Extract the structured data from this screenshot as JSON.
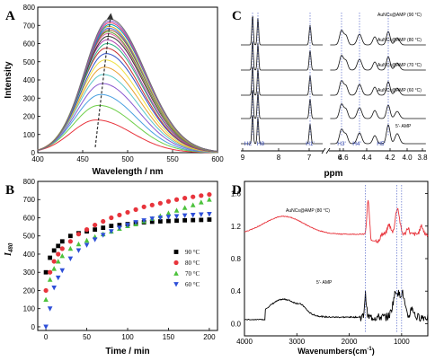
{
  "chart_data": [
    {
      "panel": "A",
      "type": "line",
      "xlabel": "Wavelength / nm",
      "ylabel": "Intensity",
      "xlim": [
        400,
        600
      ],
      "ylim": [
        0,
        800
      ],
      "xticks": [
        400,
        450,
        500,
        550,
        600
      ],
      "yticks": [
        0,
        100,
        200,
        300,
        400,
        500,
        600,
        700,
        800
      ],
      "sigma": 36,
      "series": [
        {
          "center": 465,
          "peak": 180,
          "color": "#e8343c"
        },
        {
          "center": 468,
          "peak": 260,
          "color": "#6fcf4a"
        },
        {
          "center": 470,
          "peak": 320,
          "color": "#4aa0e0"
        },
        {
          "center": 472,
          "peak": 380,
          "color": "#8a5ad0"
        },
        {
          "center": 473,
          "peak": 430,
          "color": "#5ac8c8"
        },
        {
          "center": 474,
          "peak": 470,
          "color": "#e8a030"
        },
        {
          "center": 475,
          "peak": 510,
          "color": "#f0e040"
        },
        {
          "center": 476,
          "peak": 545,
          "color": "#3050c8"
        },
        {
          "center": 476,
          "peak": 575,
          "color": "#c83030"
        },
        {
          "center": 477,
          "peak": 600,
          "color": "#2ab080"
        },
        {
          "center": 477,
          "peak": 620,
          "color": "#b040b0"
        },
        {
          "center": 478,
          "peak": 640,
          "color": "#303030"
        },
        {
          "center": 478,
          "peak": 655,
          "color": "#e060a0"
        },
        {
          "center": 478,
          "peak": 665,
          "color": "#60a030"
        },
        {
          "center": 479,
          "peak": 675,
          "color": "#a06030"
        },
        {
          "center": 479,
          "peak": 685,
          "color": "#4060e0"
        },
        {
          "center": 479,
          "peak": 695,
          "color": "#d0b020"
        },
        {
          "center": 480,
          "peak": 705,
          "color": "#00a0c0"
        },
        {
          "center": 480,
          "peak": 715,
          "color": "#e04070"
        },
        {
          "center": 480,
          "peak": 725,
          "color": "#9060d0"
        },
        {
          "center": 480,
          "peak": 735,
          "color": "#707070"
        }
      ],
      "arrow": {
        "from": [
          464,
          30
        ],
        "to": [
          481,
          750
        ]
      }
    },
    {
      "panel": "B",
      "type": "scatter",
      "xlabel": "Time / min",
      "ylabel": "I",
      "ylabel_sub": "480",
      "xlim": [
        -10,
        210
      ],
      "ylim": [
        -20,
        800
      ],
      "xticks": [
        0,
        50,
        100,
        150,
        200
      ],
      "yticks": [
        0,
        100,
        200,
        300,
        400,
        500,
        600,
        700,
        800
      ],
      "x": [
        0,
        5,
        10,
        15,
        20,
        30,
        40,
        50,
        60,
        70,
        80,
        90,
        100,
        110,
        120,
        130,
        140,
        150,
        160,
        170,
        180,
        190,
        200
      ],
      "series": [
        {
          "name": "90 °C",
          "color": "#000000",
          "marker": "square",
          "values": [
            300,
            380,
            420,
            445,
            470,
            500,
            515,
            525,
            535,
            545,
            555,
            560,
            565,
            570,
            575,
            578,
            580,
            582,
            584,
            586,
            587,
            588,
            590
          ]
        },
        {
          "name": "80 °C",
          "color": "#e8343c",
          "marker": "circle",
          "values": [
            200,
            300,
            360,
            400,
            430,
            470,
            510,
            535,
            560,
            580,
            600,
            615,
            630,
            645,
            660,
            670,
            680,
            690,
            700,
            708,
            715,
            722,
            728
          ]
        },
        {
          "name": "70 °C",
          "color": "#4cc23c",
          "marker": "triangle-up",
          "values": [
            150,
            260,
            320,
            360,
            390,
            430,
            455,
            475,
            495,
            510,
            525,
            540,
            555,
            565,
            580,
            595,
            610,
            625,
            640,
            655,
            670,
            685,
            700
          ]
        },
        {
          "name": "60 °C",
          "color": "#2e4fd8",
          "marker": "triangle-down",
          "values": [
            0,
            100,
            215,
            270,
            310,
            375,
            420,
            450,
            480,
            505,
            525,
            545,
            560,
            575,
            585,
            595,
            600,
            605,
            608,
            612,
            615,
            618,
            620
          ]
        }
      ]
    },
    {
      "panel": "C",
      "type": "line",
      "xlabel": "ppm",
      "xticks": [
        "9",
        "8",
        "7",
        "6",
        "4.6",
        "4.4",
        "4.2",
        "4.0",
        "3.8"
      ],
      "peak_labels": [
        "H2",
        "H8",
        "H1'",
        "H3'",
        "H4'",
        "H5'"
      ],
      "trace_labels": [
        "AuNCs@AMP (90 °C)",
        "AuNCs@AMP (80 °C)",
        "AuNCs@AMP (70 °C)",
        "AuNCs@AMP (60 °C)",
        "5'- AMP"
      ]
    },
    {
      "panel": "D",
      "type": "line",
      "xlabel": "Wavenumbers(cm",
      "xlabel_sup": "-1",
      "xlabel_end": ")",
      "xlim": [
        4000,
        500
      ],
      "ylim": [
        -0.15,
        1.75
      ],
      "xticks": [
        4000,
        3000,
        2000,
        1000
      ],
      "yticks": [
        "0.0",
        "0.4",
        "0.8",
        "1.2",
        "1.6"
      ],
      "series": [
        {
          "name": "AuNCs@AMP (80 °C)",
          "color": "#e8343c"
        },
        {
          "name": "5'- AMP",
          "color": "#000000"
        }
      ]
    }
  ],
  "panel_letters": [
    "A",
    "B",
    "C",
    "D"
  ]
}
